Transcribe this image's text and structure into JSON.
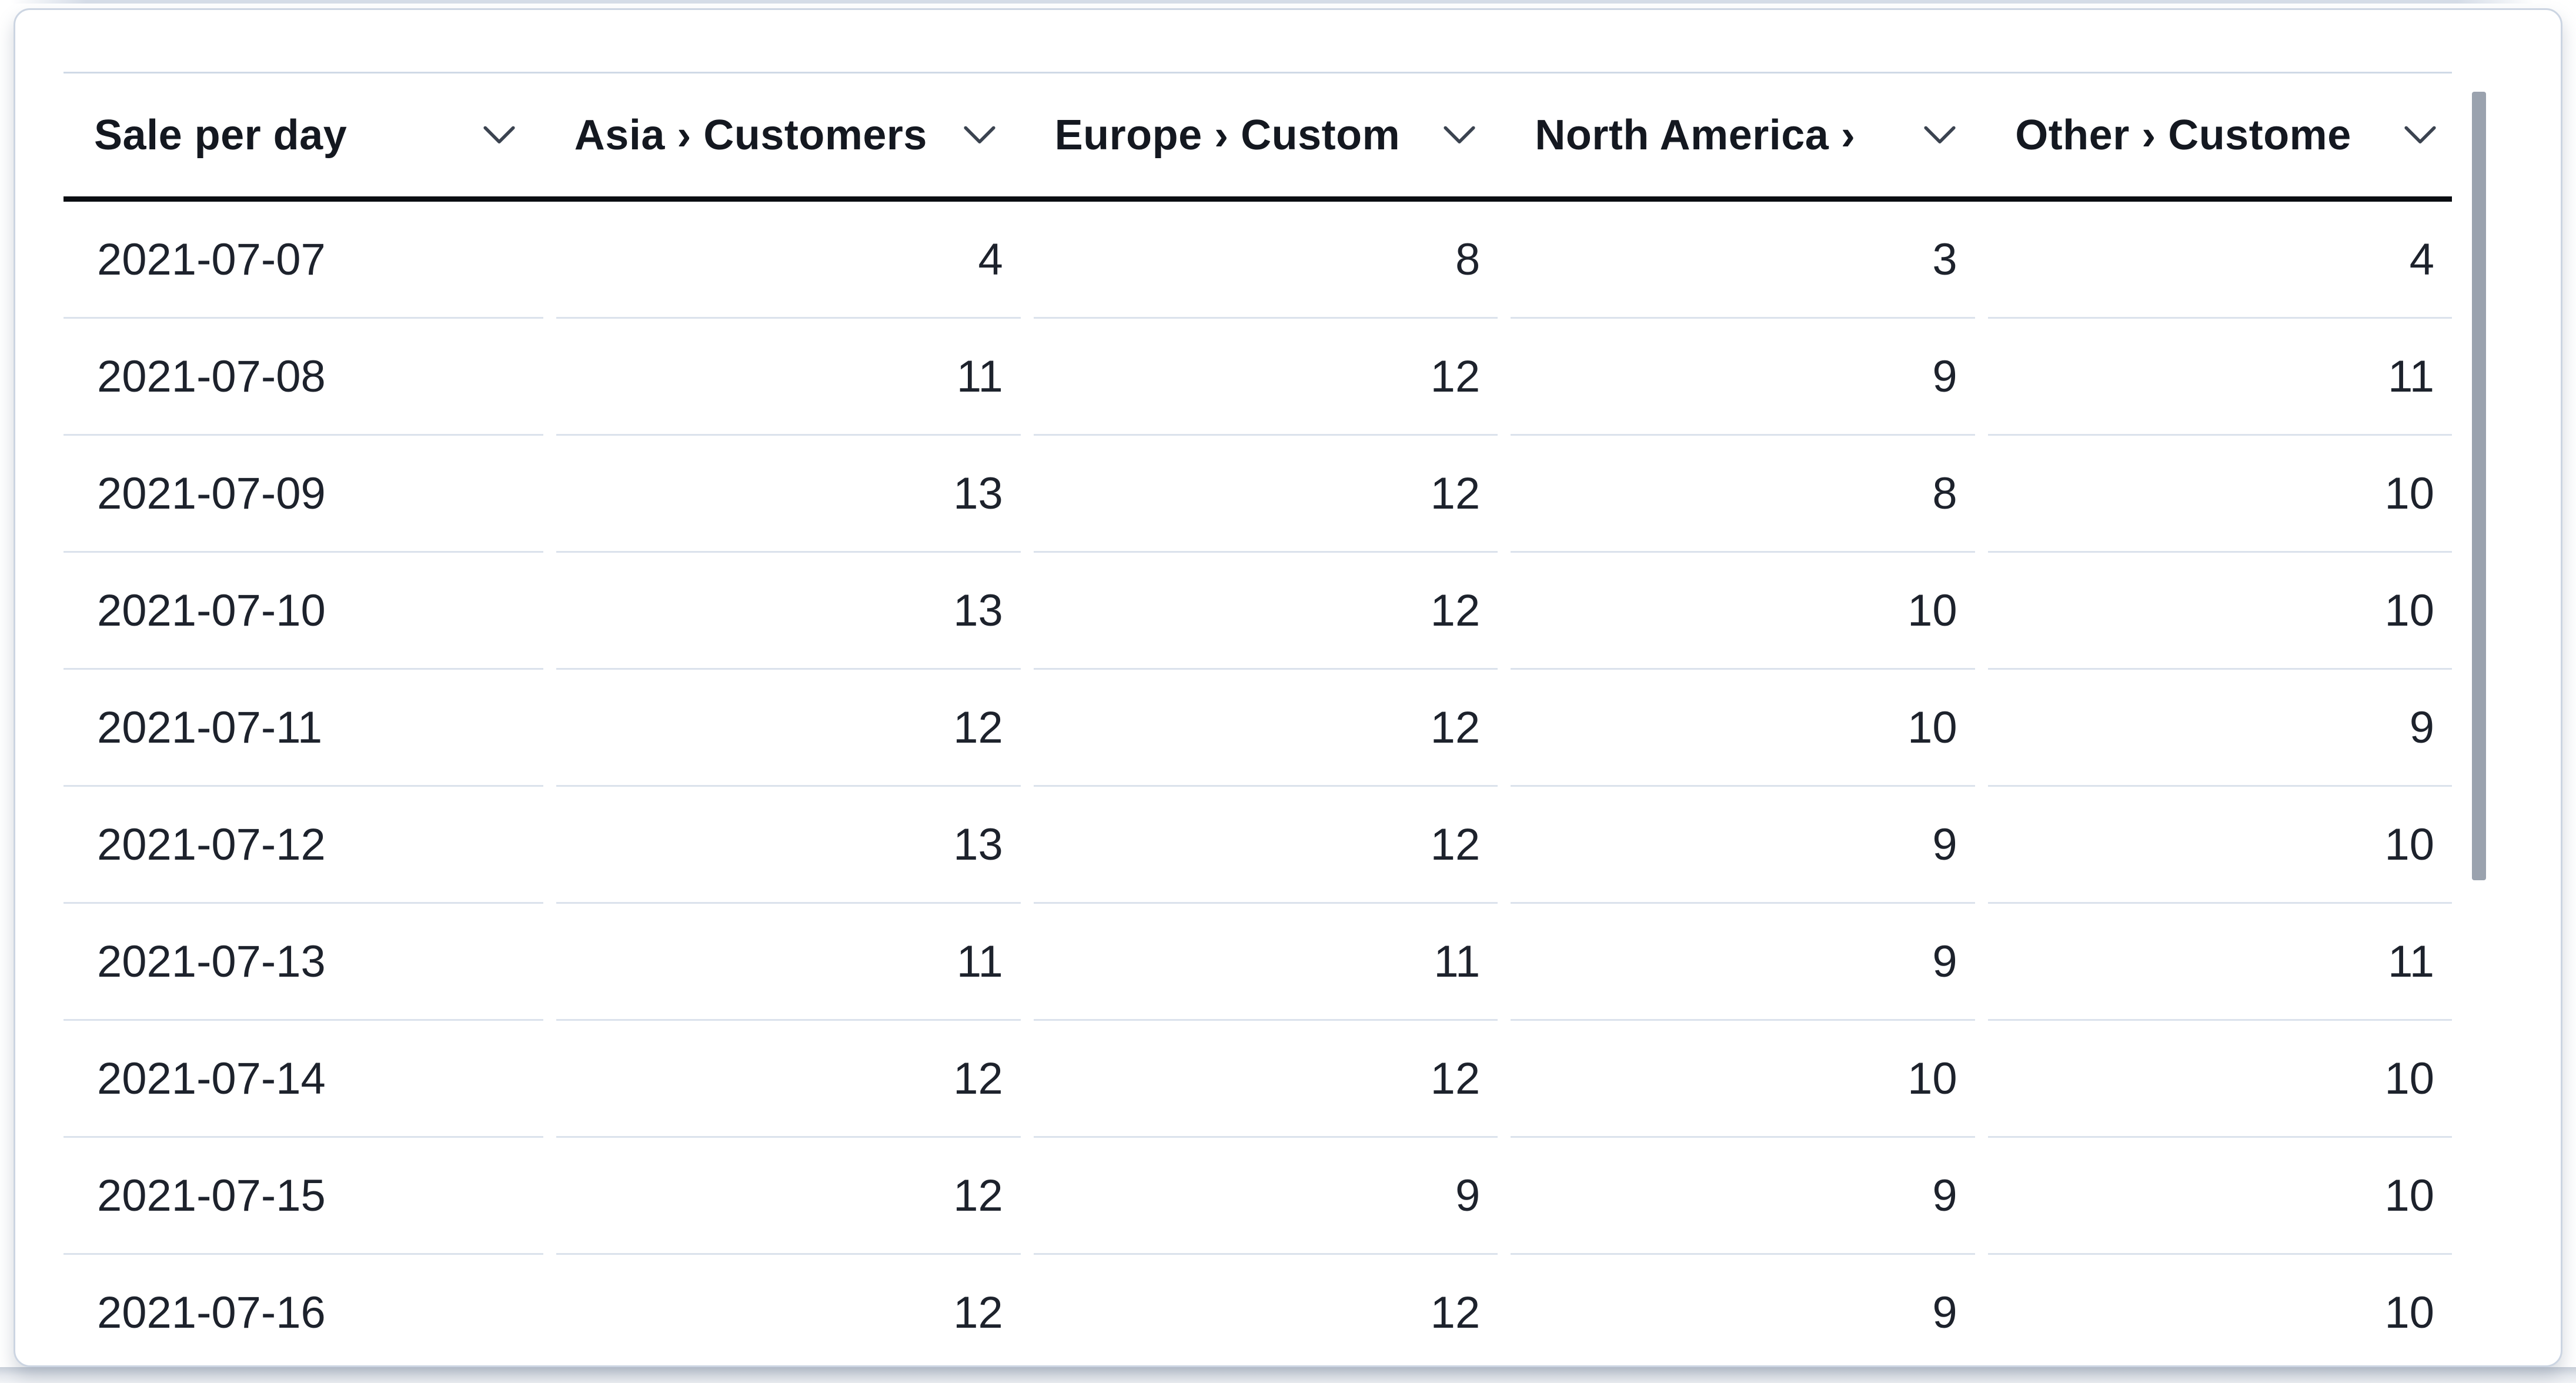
{
  "table": {
    "columns": [
      {
        "id": "date",
        "label": "Sale per day",
        "align": "left",
        "sort_icon": "chevron-down"
      },
      {
        "id": "asia",
        "label": "Asia › Customers",
        "align": "right",
        "sort_icon": "chevron-down"
      },
      {
        "id": "europe",
        "label": "Europe › Custom",
        "align": "right",
        "sort_icon": "chevron-down"
      },
      {
        "id": "north_america",
        "label": "North America ›",
        "align": "right",
        "sort_icon": "chevron-down"
      },
      {
        "id": "other",
        "label": "Other › Custome",
        "align": "right",
        "sort_icon": "chevron-down"
      }
    ],
    "rows": [
      {
        "date": "2021-07-07",
        "values": [
          "4",
          "8",
          "3",
          "4"
        ]
      },
      {
        "date": "2021-07-08",
        "values": [
          "11",
          "12",
          "9",
          "11"
        ]
      },
      {
        "date": "2021-07-09",
        "values": [
          "13",
          "12",
          "8",
          "10"
        ]
      },
      {
        "date": "2021-07-10",
        "values": [
          "13",
          "12",
          "10",
          "10"
        ]
      },
      {
        "date": "2021-07-11",
        "values": [
          "12",
          "12",
          "10",
          "9"
        ]
      },
      {
        "date": "2021-07-12",
        "values": [
          "13",
          "12",
          "9",
          "10"
        ]
      },
      {
        "date": "2021-07-13",
        "values": [
          "11",
          "11",
          "9",
          "11"
        ]
      },
      {
        "date": "2021-07-14",
        "values": [
          "12",
          "12",
          "10",
          "10"
        ]
      },
      {
        "date": "2021-07-15",
        "values": [
          "12",
          "9",
          "9",
          "10"
        ]
      },
      {
        "date": "2021-07-16",
        "values": [
          "12",
          "12",
          "9",
          "10"
        ]
      }
    ]
  },
  "scrollbar": {
    "visible": true,
    "orientation": "vertical"
  },
  "colors": {
    "page_background": "#ffffff",
    "card_background": "#ffffff",
    "card_border": "#ccd5e2",
    "table_top_rule": "#cfd9e6",
    "header_rule": "#0a0d12",
    "row_divider": "#dbe2ec",
    "header_text": "#141820",
    "text": "#1d222c",
    "chevron": "#3b4350",
    "scrollbar_thumb": "#9aa2ae",
    "bottom_strip_start": "#c9d0da",
    "bottom_strip_end": "#f1f3f6"
  }
}
